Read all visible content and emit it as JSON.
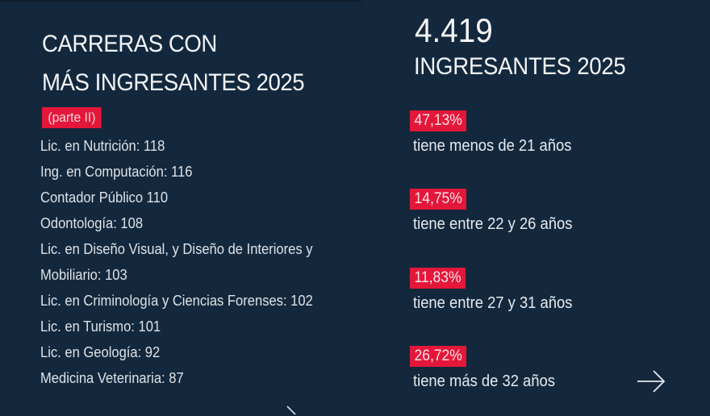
{
  "left": {
    "title_line1": "CARRERAS CON",
    "title_line2": "MÁS INGRESANTES 2025",
    "tag": "(parte II)",
    "items": [
      "Lic. en Nutrición: 118",
      "Ing. en Computación: 116",
      "Contador Público 110",
      "Odontología: 108",
      "Lic. en Diseño Visual, y Diseño de Interiores y",
      "Mobiliario: 103",
      "Lic. en Criminología y Ciencias Forenses: 102",
      "Lic. en Turismo: 101",
      "Lic. en Geología: 92",
      "Medicina Veterinaria: 87"
    ]
  },
  "right": {
    "total": "4.419",
    "total_label": "INGRESANTES 2025",
    "stats": [
      {
        "percent": "47,13%",
        "text": "tiene menos de 21 años"
      },
      {
        "percent": "14,75%",
        "text": "tiene entre 22 y 26 años"
      },
      {
        "percent": "11,83%",
        "text": "tiene entre 27 y 31 años"
      },
      {
        "percent": "26,72%",
        "text": "tiene más de 32 años"
      }
    ],
    "next_icon": "arrow-right-icon"
  },
  "colors": {
    "background": "#14283d",
    "accent": "#e4173a",
    "text": "#e9edf1"
  }
}
